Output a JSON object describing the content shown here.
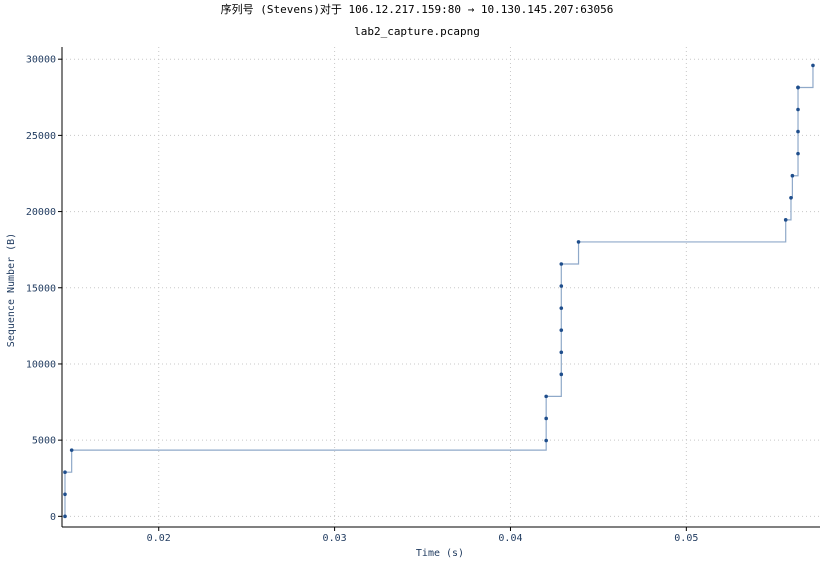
{
  "chart_data": {
    "type": "line",
    "title": "序列号 (Stevens)对于 106.12.217.159:80 → 10.130.145.207:63056",
    "subtitle": "lab2_capture.pcapng",
    "xlabel": "Time (s)",
    "ylabel": "Sequence Number (B)",
    "xlim": [
      0.0145,
      0.0576
    ],
    "ylim": [
      -700,
      30800
    ],
    "xticks": [
      0.02,
      0.03,
      0.04,
      0.05
    ],
    "xtick_labels": [
      "0.02",
      "0.03",
      "0.04",
      "0.05"
    ],
    "yticks": [
      0,
      5000,
      10000,
      15000,
      20000,
      25000,
      30000
    ],
    "ytick_labels": [
      "0",
      "5000",
      "10000",
      "15000",
      "20000",
      "25000",
      "30000"
    ],
    "grid": true,
    "step_line": true,
    "colors": {
      "line": "#8fa9c9",
      "point": "#1f4e8c",
      "grid": "#c8c8c8",
      "axis": "#000000",
      "text": "#1f3a5f"
    },
    "series": [
      {
        "x": [
          0.01467,
          0.01467,
          0.01467,
          0.01505,
          0.04203,
          0.04203,
          0.04203,
          0.04289,
          0.04289,
          0.04289,
          0.04289,
          0.04289,
          0.04289,
          0.04387,
          0.05565,
          0.05595,
          0.05603,
          0.05635,
          0.05635,
          0.05635,
          0.05635,
          0.05635,
          0.0572
        ],
        "y": [
          0,
          1448,
          2896,
          4344,
          4976,
          6424,
          7872,
          9320,
          10768,
          12216,
          13664,
          15112,
          16560,
          18008,
          19456,
          20904,
          22352,
          23800,
          25248,
          26696,
          28144,
          28144,
          29592
        ]
      }
    ]
  }
}
